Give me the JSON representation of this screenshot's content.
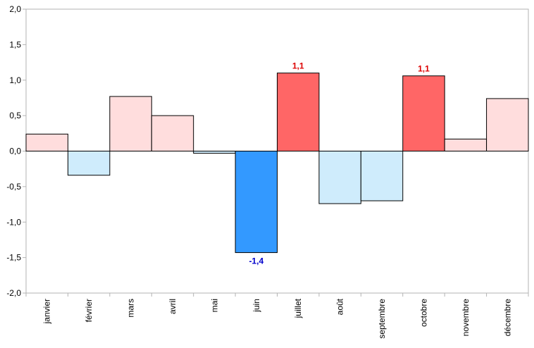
{
  "chart_data": {
    "type": "bar",
    "categories": [
      "janvier",
      "février",
      "mars",
      "avril",
      "mai",
      "juin",
      "juillet",
      "août",
      "septembre",
      "octobre",
      "novembre",
      "décembre"
    ],
    "values": [
      0.24,
      -0.34,
      0.77,
      0.5,
      -0.03,
      -1.43,
      1.1,
      -0.74,
      -0.7,
      1.06,
      0.17,
      0.74
    ],
    "ylim": [
      -2.0,
      2.0
    ],
    "yticks": [
      "2,0",
      "1,5",
      "1,0",
      "0,5",
      "0,0",
      "-0,5",
      "-1,0",
      "-1,5",
      "-2,0"
    ],
    "ytick_values": [
      2.0,
      1.5,
      1.0,
      0.5,
      0.0,
      -0.5,
      -1.0,
      -1.5,
      -2.0
    ],
    "bar_colors": [
      "#ffdddd",
      "#cfecfc",
      "#ffdddd",
      "#ffdddd",
      "#cfecfc",
      "#3399ff",
      "#ff6666",
      "#cfecfc",
      "#cfecfc",
      "#ff6666",
      "#ffdddd",
      "#ffdddd"
    ],
    "data_labels": [
      {
        "index": 5,
        "text": "-1,4",
        "color": "#0000cc"
      },
      {
        "index": 6,
        "text": "1,1",
        "color": "#dd0000"
      },
      {
        "index": 9,
        "text": "1,1",
        "color": "#dd0000"
      }
    ],
    "grid": false,
    "legend": "none"
  }
}
